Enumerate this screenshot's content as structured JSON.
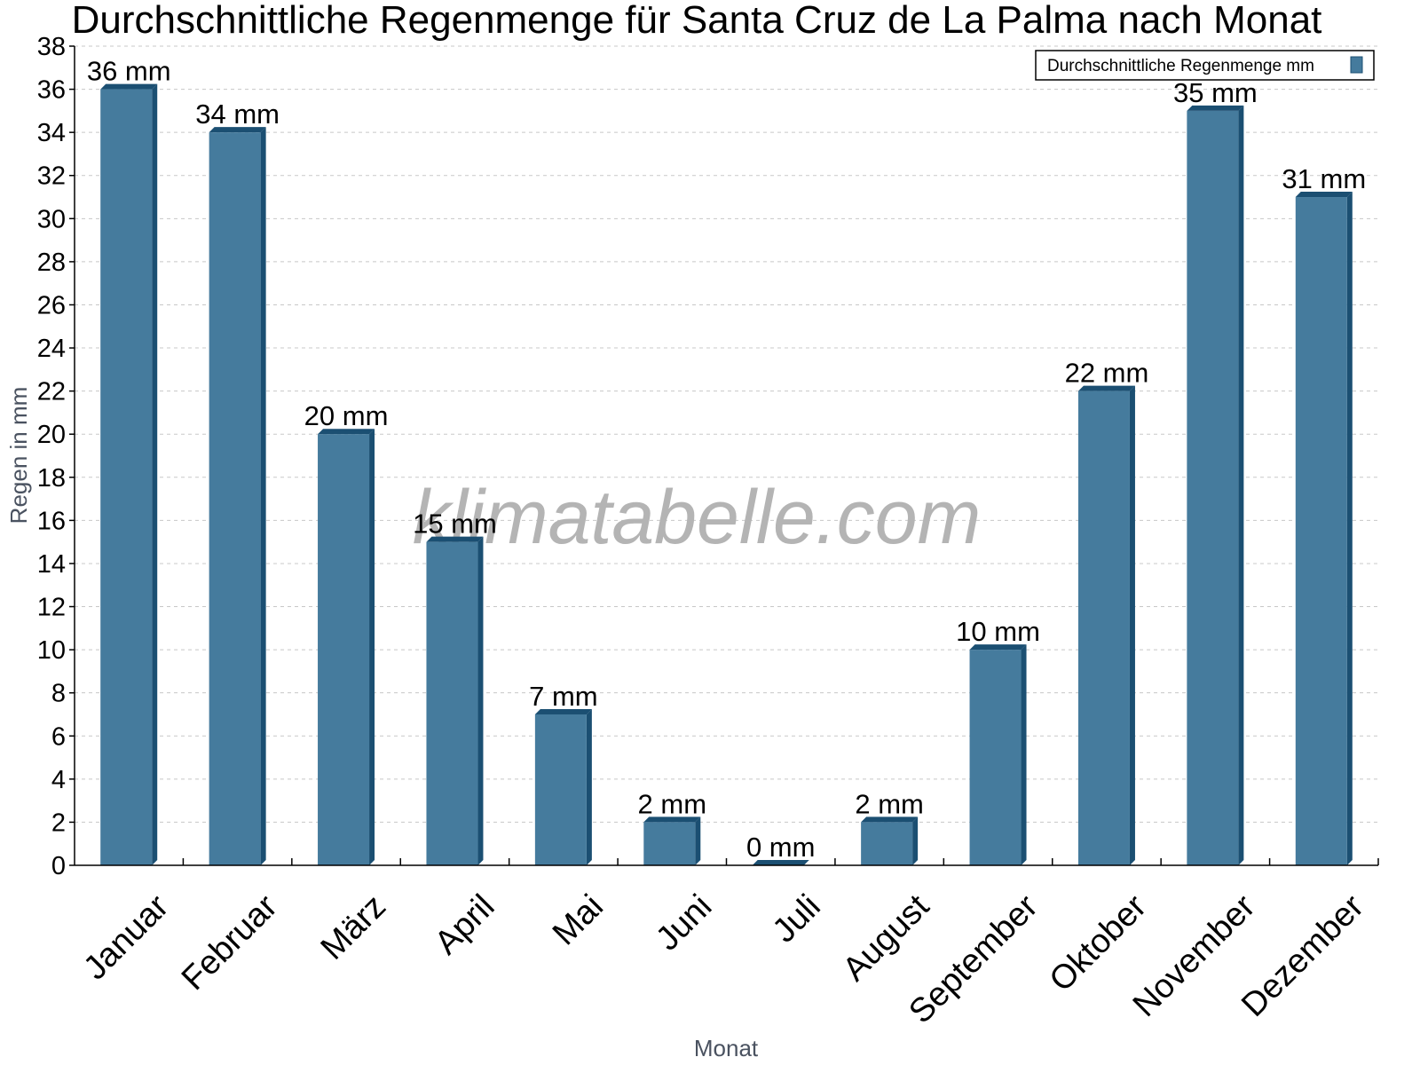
{
  "chart_data": {
    "type": "bar",
    "title": "Durchschnittliche Regenmenge für Santa Cruz de La Palma nach Monat",
    "xlabel": "Monat",
    "ylabel": "Regen in mm",
    "ylim": [
      0,
      38
    ],
    "ytick_step": 2,
    "grid": true,
    "legend_position": "top-right",
    "categories": [
      "Januar",
      "Februar",
      "März",
      "April",
      "Mai",
      "Juni",
      "Juli",
      "August",
      "September",
      "Oktober",
      "November",
      "Dezember"
    ],
    "series": [
      {
        "name": "Durchschnittliche Regenmenge mm",
        "values": [
          36,
          34,
          20,
          15,
          7,
          2,
          0,
          2,
          10,
          22,
          35,
          31
        ],
        "labels": [
          "36 mm",
          "34 mm",
          "20 mm",
          "15 mm",
          "7 mm",
          "2 mm",
          "0 mm",
          "2 mm",
          "10 mm",
          "22 mm",
          "35 mm",
          "31 mm"
        ],
        "color": "#457b9d",
        "side_color": "#1b4f72"
      }
    ]
  },
  "watermark": "klimatabelle.com"
}
